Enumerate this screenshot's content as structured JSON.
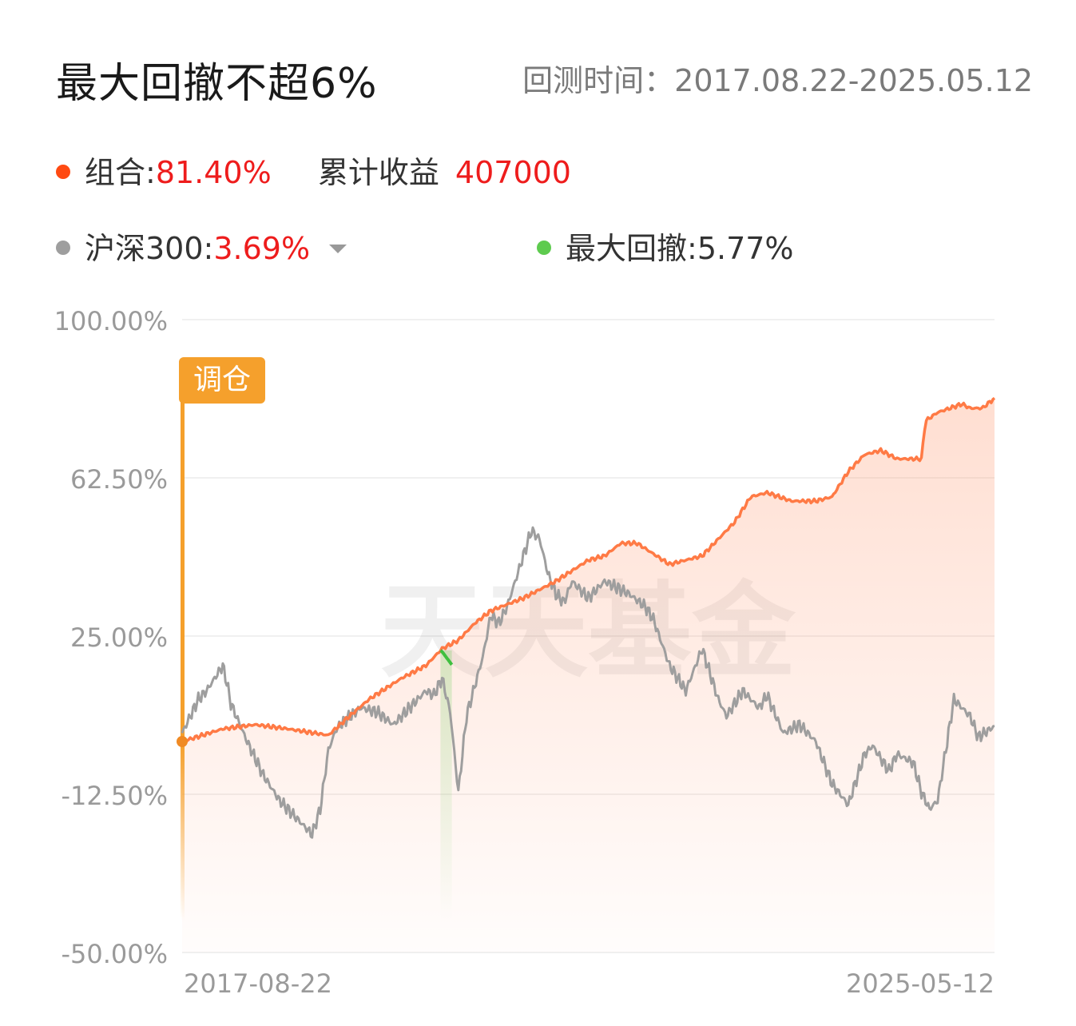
{
  "header": {
    "title": "最大回撤不超6%",
    "period_label": "回测时间：",
    "period_value": "2017.08.22-2025.05.12"
  },
  "legend": {
    "portfolio": {
      "name": "组合:",
      "value": "81.40%",
      "color": "#ff5a1f"
    },
    "cumulative": {
      "name": "累计收益",
      "value": "407000"
    },
    "benchmark": {
      "name": "沪深300:",
      "value": "3.69%",
      "color": "#9e9e9e",
      "dropdown_icon": "caret-down-icon"
    },
    "max_drawdown": {
      "name": "最大回撤:",
      "value": "5.77%",
      "color": "#5ecb4f"
    }
  },
  "badge": {
    "label": "调仓"
  },
  "watermark": "天天基金",
  "chart_data": {
    "type": "line",
    "x_start": "2017-08-22",
    "x_end": "2025-05-12",
    "ylim": [
      -50,
      100
    ],
    "y_ticks": [
      "100.00%",
      "62.50%",
      "25.00%",
      "-12.50%",
      "-50.00%"
    ],
    "y_tick_values": [
      100,
      62.5,
      25,
      -12.5,
      -50
    ],
    "x_tick_labels": [
      "2017-08-22",
      "2025-05-12"
    ],
    "grid": true,
    "series": [
      {
        "name": "组合",
        "color": "#ff7a45",
        "x": [
          0,
          0.05,
          0.09,
          0.13,
          0.18,
          0.2,
          0.23,
          0.27,
          0.3,
          0.32,
          0.34,
          0.36,
          0.38,
          0.42,
          0.46,
          0.5,
          0.52,
          0.54,
          0.56,
          0.6,
          0.64,
          0.66,
          0.68,
          0.7,
          0.72,
          0.75,
          0.78,
          0.8,
          0.82,
          0.84,
          0.86,
          0.88,
          0.91,
          0.915,
          0.93,
          0.96,
          0.97,
          0.985,
          1.0
        ],
        "values": [
          0,
          3,
          4,
          3,
          1.5,
          5,
          10,
          15,
          18,
          22,
          24,
          28,
          31,
          34,
          38,
          43,
          44,
          47,
          47,
          42,
          44,
          48,
          52,
          58,
          59,
          57,
          57,
          58,
          64,
          68,
          69,
          67,
          67,
          76,
          78,
          80,
          79,
          79,
          81.4
        ]
      },
      {
        "name": "沪深300",
        "color": "#9e9e9e",
        "x": [
          0,
          0.02,
          0.03,
          0.05,
          0.055,
          0.06,
          0.08,
          0.1,
          0.12,
          0.14,
          0.16,
          0.17,
          0.18,
          0.19,
          0.2,
          0.22,
          0.24,
          0.26,
          0.28,
          0.3,
          0.31,
          0.32,
          0.33,
          0.34,
          0.35,
          0.37,
          0.38,
          0.39,
          0.4,
          0.41,
          0.43,
          0.44,
          0.45,
          0.46,
          0.47,
          0.48,
          0.5,
          0.52,
          0.55,
          0.57,
          0.58,
          0.6,
          0.62,
          0.64,
          0.66,
          0.67,
          0.69,
          0.71,
          0.72,
          0.74,
          0.76,
          0.78,
          0.8,
          0.82,
          0.84,
          0.85,
          0.87,
          0.88,
          0.9,
          0.91,
          0.92,
          0.93,
          0.95,
          0.97,
          0.98,
          1.0
        ],
        "values": [
          2,
          10,
          12,
          18,
          14,
          9,
          0,
          -8,
          -14,
          -18,
          -22,
          -16,
          -2,
          3,
          5,
          8,
          7,
          4,
          8,
          12,
          11,
          15,
          7,
          -12,
          6,
          20,
          30,
          28,
          32,
          38,
          50,
          48,
          40,
          35,
          33,
          38,
          34,
          38,
          35,
          32,
          29,
          18,
          12,
          22,
          10,
          6,
          12,
          8,
          11,
          2,
          4,
          0,
          -10,
          -15,
          -3,
          -1,
          -7,
          -3,
          -5,
          -12,
          -16,
          -14,
          10,
          6,
          1,
          3.69
        ]
      }
    ],
    "drawdown_highlight": {
      "color": "#3fbf3f",
      "x_from": 0.318,
      "x_to": 0.332,
      "max_drawdown": "5.77%"
    },
    "annotation": {
      "label": "调仓",
      "x": 0
    }
  }
}
